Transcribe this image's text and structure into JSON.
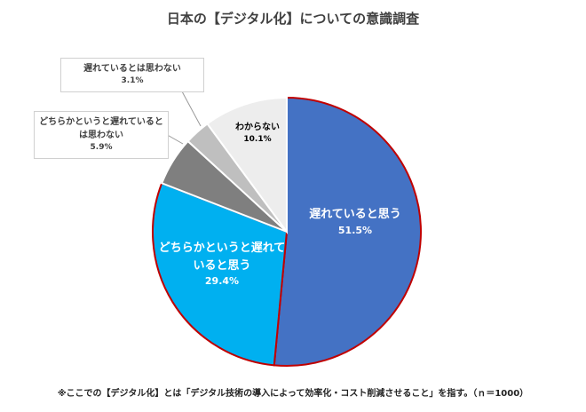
{
  "chart_data": {
    "type": "pie",
    "title": "日本の【デジタル化】についての意識調査",
    "categories": [
      "遅れていると思う",
      "どちらかというと遅れていると思う",
      "どちらかというと遅れているとは思わない",
      "遅れているとは思わない",
      "わからない"
    ],
    "values": [
      51.5,
      29.4,
      5.9,
      3.1,
      10.1
    ],
    "value_labels": [
      "51.5%",
      "29.4%",
      "5.9%",
      "3.1%",
      "10.1%"
    ],
    "colors": [
      "#4472c4",
      "#00b0f0",
      "#7f7f7f",
      "#bfbfbf",
      "#ededed"
    ],
    "edgecolors": [
      "#c00000",
      "#c00000",
      "#ffffff",
      "#ffffff",
      "#ffffff"
    ],
    "footnote": "※ここでの【デジタル化】とは「デジタル技術の導入によって効率化・コスト削減させること」を指す。（ｎ＝1000）"
  }
}
